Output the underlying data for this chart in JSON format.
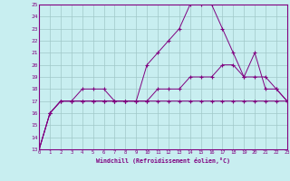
{
  "xlabel": "Windchill (Refroidissement éolien,°C)",
  "bg_color": "#c8eef0",
  "line_color": "#800080",
  "grid_color": "#a0c8c8",
  "xlim": [
    0,
    23
  ],
  "ylim": [
    13,
    25
  ],
  "xticks": [
    0,
    1,
    2,
    3,
    4,
    5,
    6,
    7,
    8,
    9,
    10,
    11,
    12,
    13,
    14,
    15,
    16,
    17,
    18,
    19,
    20,
    21,
    22,
    23
  ],
  "yticks": [
    13,
    14,
    15,
    16,
    17,
    18,
    19,
    20,
    21,
    22,
    23,
    24,
    25
  ],
  "line1_x": [
    0,
    1,
    2,
    3,
    4,
    5,
    6,
    7,
    8,
    9,
    10,
    11,
    12,
    13,
    14,
    15,
    16,
    17,
    18,
    19,
    20,
    21,
    22,
    23
  ],
  "line1_y": [
    13,
    16,
    17,
    17,
    17,
    17,
    17,
    17,
    17,
    17,
    17,
    17,
    17,
    17,
    17,
    17,
    17,
    17,
    17,
    17,
    17,
    17,
    17,
    17
  ],
  "line2_x": [
    0,
    1,
    2,
    3,
    4,
    5,
    6,
    7,
    8,
    9,
    10,
    11,
    12,
    13,
    14,
    15,
    16,
    17,
    18,
    19,
    20,
    21,
    22,
    23
  ],
  "line2_y": [
    13,
    16,
    17,
    17,
    17,
    17,
    17,
    17,
    17,
    17,
    17,
    18,
    18,
    18,
    19,
    19,
    19,
    20,
    20,
    19,
    19,
    19,
    18,
    17
  ],
  "line3_x": [
    0,
    1,
    2,
    3,
    4,
    5,
    6,
    7,
    8,
    9,
    10,
    11,
    12,
    13,
    14,
    15,
    16,
    17,
    18,
    19,
    20,
    21,
    22,
    23
  ],
  "line3_y": [
    13,
    16,
    17,
    17,
    18,
    18,
    18,
    17,
    17,
    17,
    20,
    21,
    22,
    23,
    25,
    25,
    25,
    23,
    21,
    19,
    21,
    18,
    18,
    17
  ]
}
